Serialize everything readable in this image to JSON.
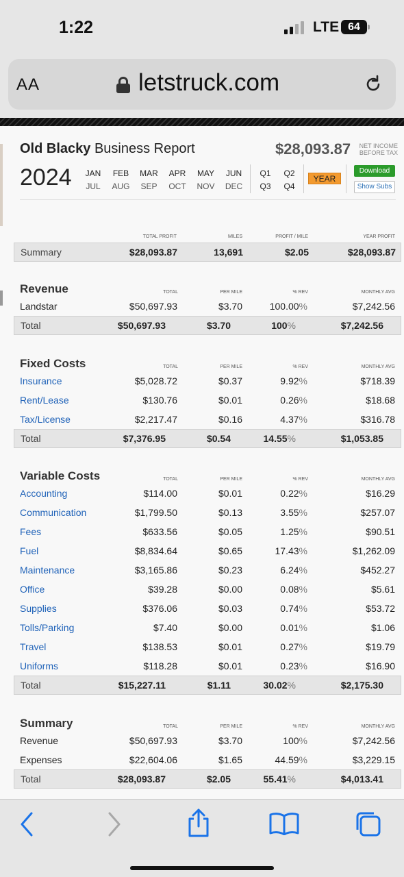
{
  "status": {
    "time": "1:22",
    "network": "LTE",
    "battery": "64"
  },
  "browser": {
    "aa": "AA",
    "domain": "letstruck.com"
  },
  "header": {
    "title_bold": "Old Blacky",
    "title_rest": "Business Report",
    "net_amount": "$28,093.87",
    "net_label_1": "NET INCOME",
    "net_label_2": "BEFORE TAX",
    "year": "2024",
    "months_row1": [
      "JAN",
      "FEB",
      "MAR",
      "APR",
      "MAY",
      "JUN"
    ],
    "months_row2": [
      "JUL",
      "AUG",
      "SEP",
      "OCT",
      "NOV",
      "DEC"
    ],
    "quarters_row1": [
      "Q1",
      "Q2"
    ],
    "quarters_row2": [
      "Q3",
      "Q4"
    ],
    "year_button": "YEAR",
    "download_button": "Download",
    "subs_button": "Show Subs"
  },
  "summary_top": {
    "heads": [
      "TOTAL PROFIT",
      "MILES",
      "PROFIT / MILE",
      "YEAR PROFIT"
    ],
    "label": "Summary",
    "values": [
      "$28,093.87",
      "13,691",
      "$2.05",
      "$28,093.87"
    ]
  },
  "columns": [
    "TOTAL",
    "PER MILE",
    "% REV",
    "MONTHLY AVG"
  ],
  "revenue": {
    "title": "Revenue",
    "rows": [
      {
        "name": "Landstar",
        "total": "$50,697.93",
        "per_mile": "$3.70",
        "pct": "100.00",
        "monthly": "$7,242.56"
      }
    ],
    "total": {
      "name": "Total",
      "total": "$50,697.93",
      "per_mile": "$3.70",
      "pct": "100",
      "monthly": "$7,242.56"
    }
  },
  "fixed": {
    "title": "Fixed Costs",
    "rows": [
      {
        "name": "Insurance",
        "total": "$5,028.72",
        "per_mile": "$0.37",
        "pct": "9.92",
        "monthly": "$718.39"
      },
      {
        "name": "Rent/Lease",
        "total": "$130.76",
        "per_mile": "$0.01",
        "pct": "0.26",
        "monthly": "$18.68"
      },
      {
        "name": "Tax/License",
        "total": "$2,217.47",
        "per_mile": "$0.16",
        "pct": "4.37",
        "monthly": "$316.78"
      }
    ],
    "total": {
      "name": "Total",
      "total": "$7,376.95",
      "per_mile": "$0.54",
      "pct": "14.55",
      "monthly": "$1,053.85"
    }
  },
  "variable": {
    "title": "Variable Costs",
    "rows": [
      {
        "name": "Accounting",
        "total": "$114.00",
        "per_mile": "$0.01",
        "pct": "0.22",
        "monthly": "$16.29"
      },
      {
        "name": "Communication",
        "total": "$1,799.50",
        "per_mile": "$0.13",
        "pct": "3.55",
        "monthly": "$257.07"
      },
      {
        "name": "Fees",
        "total": "$633.56",
        "per_mile": "$0.05",
        "pct": "1.25",
        "monthly": "$90.51"
      },
      {
        "name": "Fuel",
        "total": "$8,834.64",
        "per_mile": "$0.65",
        "pct": "17.43",
        "monthly": "$1,262.09"
      },
      {
        "name": "Maintenance",
        "total": "$3,165.86",
        "per_mile": "$0.23",
        "pct": "6.24",
        "monthly": "$452.27"
      },
      {
        "name": "Office",
        "total": "$39.28",
        "per_mile": "$0.00",
        "pct": "0.08",
        "monthly": "$5.61"
      },
      {
        "name": "Supplies",
        "total": "$376.06",
        "per_mile": "$0.03",
        "pct": "0.74",
        "monthly": "$53.72"
      },
      {
        "name": "Tolls/Parking",
        "total": "$7.40",
        "per_mile": "$0.00",
        "pct": "0.01",
        "monthly": "$1.06"
      },
      {
        "name": "Travel",
        "total": "$138.53",
        "per_mile": "$0.01",
        "pct": "0.27",
        "monthly": "$19.79"
      },
      {
        "name": "Uniforms",
        "total": "$118.28",
        "per_mile": "$0.01",
        "pct": "0.23",
        "monthly": "$16.90"
      }
    ],
    "total": {
      "name": "Total",
      "total": "$15,227.11",
      "per_mile": "$1.11",
      "pct": "30.02",
      "monthly": "$2,175.30"
    }
  },
  "summary": {
    "title": "Summary",
    "rows": [
      {
        "name": "Revenue",
        "total": "$50,697.93",
        "per_mile": "$3.70",
        "pct": "100",
        "monthly": "$7,242.56"
      },
      {
        "name": "Expenses",
        "total": "$22,604.06",
        "per_mile": "$1.65",
        "pct": "44.59",
        "monthly": "$3,229.15"
      }
    ],
    "total": {
      "name": "Total",
      "total": "$28,093.87",
      "per_mile": "$2.05",
      "pct": "55.41",
      "monthly": "$4,013.41"
    }
  },
  "pct_sign": "%"
}
